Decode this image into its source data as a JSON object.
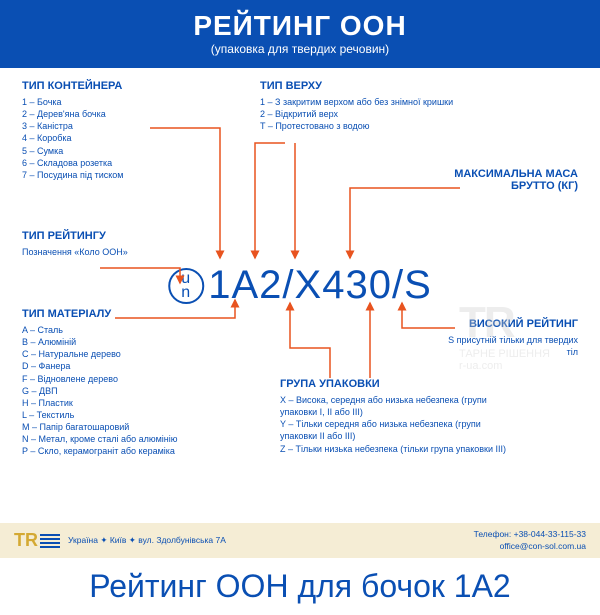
{
  "header": {
    "title": "РЕЙТИНГ ООН",
    "subtitle": "(упаковка для твердих речовин)"
  },
  "code": {
    "un_top": "u",
    "un_bot": "n",
    "text": "1A2/X430/S"
  },
  "sections": {
    "container_type": {
      "title": "ТИП КОНТЕЙНЕРА",
      "items": [
        "1 – Бочка",
        "2 – Дерев'яна бочка",
        "3 – Каністра",
        "4 – Коробка",
        "5 – Сумка",
        "6 – Складова розетка",
        "7 – Посудина під тиском"
      ]
    },
    "top_type": {
      "title": "ТИП ВЕРХУ",
      "items": [
        "1 – З закритим верхом або без знімної кришки",
        "2 – Відкритий верх",
        "T – Протестовано з водою"
      ]
    },
    "max_mass": {
      "title": "МАКСИМАЛЬНА МАСА БРУТТО (КГ)"
    },
    "rating_type": {
      "title": "ТИП РЕЙТИНГУ",
      "item": "Позначення «Коло ООН»"
    },
    "high_rating": {
      "title": "ВИСОКИЙ РЕЙТИНГ",
      "item": "S присутній тільки для твердих тіл"
    },
    "material_type": {
      "title": "ТИП МАТЕРІАЛУ",
      "items": [
        "A – Сталь",
        "B – Алюміній",
        "C – Натуральне дерево",
        "D – Фанера",
        "F – Відновлене дерево",
        "G – ДВП",
        "H – Пластик",
        "L – Текстиль",
        "M – Папір багатошаровий",
        "N – Метал, кроме сталі або алюмінію",
        "P – Скло, керамограніт або кераміка"
      ]
    },
    "pack_group": {
      "title": "ГРУПА УПАКОВКИ",
      "items": [
        "X – Висока, середня або низька небезпека (групи упаковки I, II або III)",
        "Y – Тільки середня або низька небезпека (групи упаковки II або III)",
        "Z – Тільки низька небезпека (тільки група упаковки III)"
      ]
    }
  },
  "footer": {
    "logo": "TR",
    "address": "Україна ✦ Київ ✦ вул. Здолбунівська 7А",
    "phone_label": "Телефон:",
    "phone": "+38-044-33-115-33",
    "email": "office@con-sol.com.ua"
  },
  "bottom_title": "Рейтинг ООН для бочок 1А2",
  "colors": {
    "primary": "#0a4fb3",
    "arrow": "#e8531f",
    "footer_bg": "#f5edd5"
  },
  "watermark": {
    "logo": "TR",
    "text1": "ТАРНЕ РІШЕННЯ",
    "text2": "r-ua.com"
  }
}
